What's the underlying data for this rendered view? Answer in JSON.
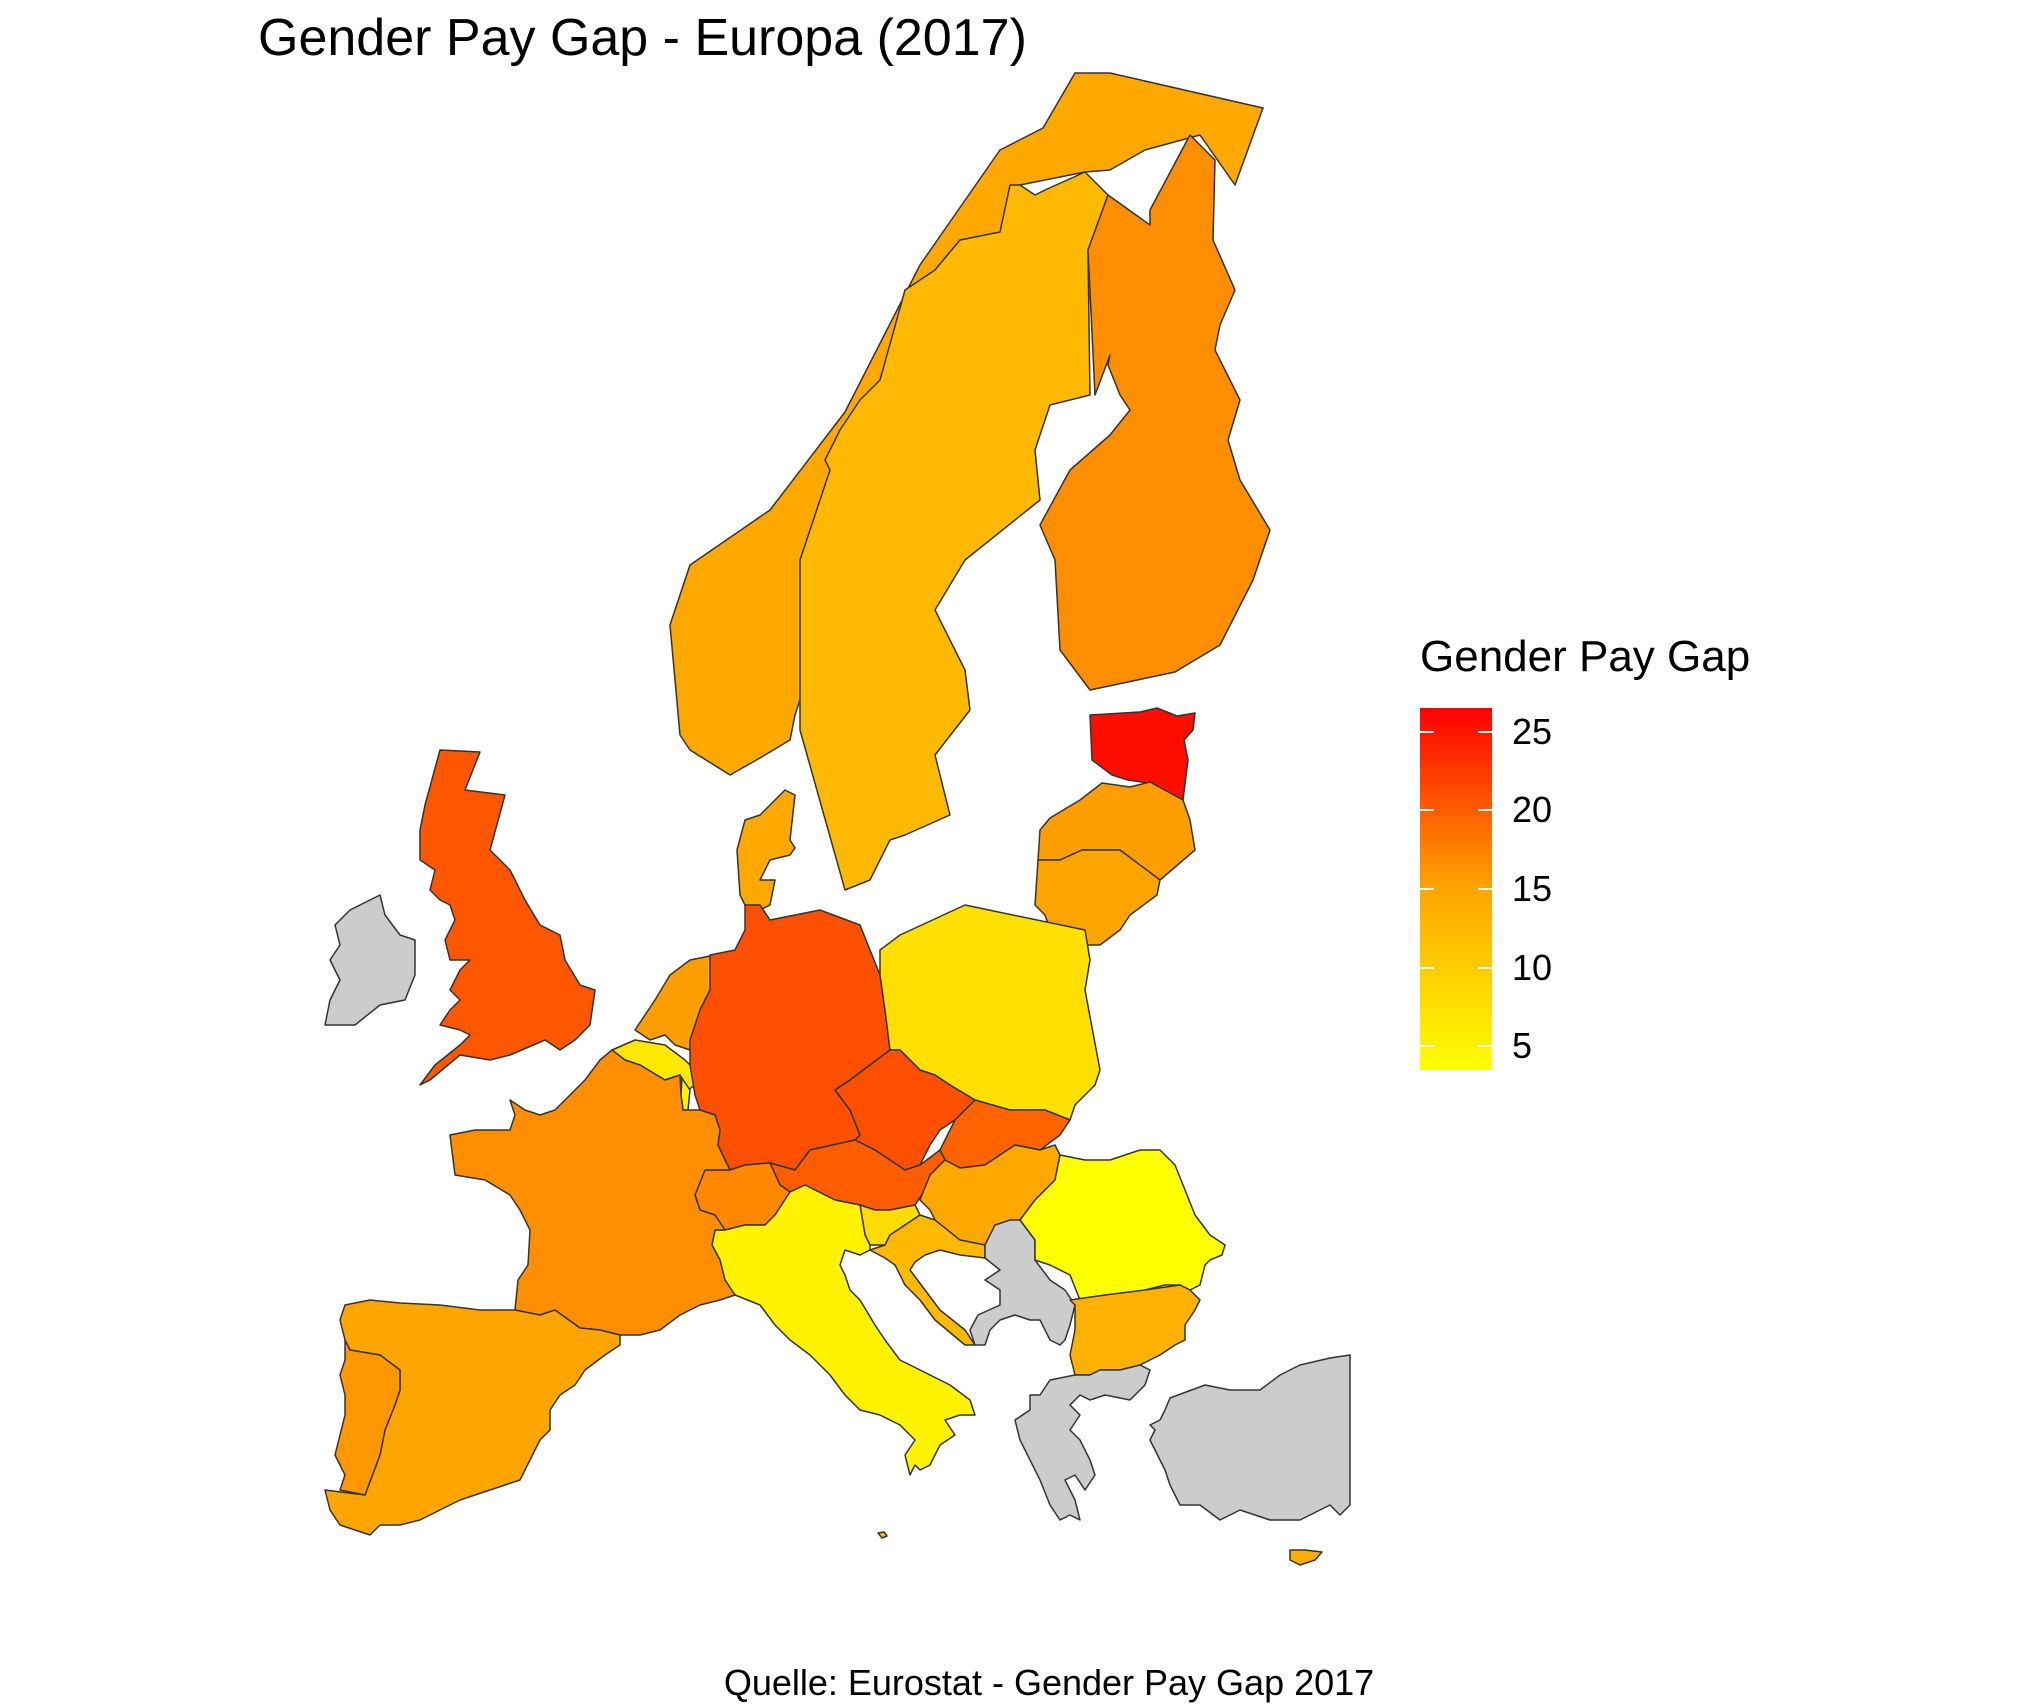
{
  "title": "Gender Pay Gap - Europa (2017)",
  "caption": "Quelle: Eurostat - Gender Pay Gap 2017",
  "legend": {
    "title": "Gender Pay Gap",
    "min": 3.5,
    "max": 26.5,
    "ticks": [
      {
        "value": 25,
        "label": "25"
      },
      {
        "value": 20,
        "label": "20"
      },
      {
        "value": 15,
        "label": "15"
      },
      {
        "value": 10,
        "label": "10"
      },
      {
        "value": 5,
        "label": "5"
      }
    ],
    "scale_colors": [
      "#ffff00",
      "#ffa500",
      "#ff0000"
    ]
  },
  "no_data_color": "#cccccc",
  "countries": [
    {
      "id": "norway",
      "value": 14.5
    },
    {
      "id": "sweden",
      "value": 12.5
    },
    {
      "id": "finland",
      "value": 16.5
    },
    {
      "id": "estonia",
      "value": 25.5
    },
    {
      "id": "latvia",
      "value": 15.5
    },
    {
      "id": "lithuania",
      "value": 15.0
    },
    {
      "id": "denmark",
      "value": 14.5
    },
    {
      "id": "united-kingdom",
      "value": 20.5
    },
    {
      "id": "ireland",
      "value": null
    },
    {
      "id": "netherlands",
      "value": 15.5
    },
    {
      "id": "belgium",
      "value": 6.5
    },
    {
      "id": "luxembourg",
      "value": 5.0
    },
    {
      "id": "germany",
      "value": 21.0
    },
    {
      "id": "poland",
      "value": 7.5
    },
    {
      "id": "czechia",
      "value": 21.0
    },
    {
      "id": "slovakia",
      "value": 19.5
    },
    {
      "id": "austria",
      "value": 20.0
    },
    {
      "id": "switzerland",
      "value": 17.0
    },
    {
      "id": "hungary",
      "value": 14.5
    },
    {
      "id": "slovenia",
      "value": 8.0
    },
    {
      "id": "croatia",
      "value": 12.5
    },
    {
      "id": "romania",
      "value": 3.5
    },
    {
      "id": "bulgaria",
      "value": 13.5
    },
    {
      "id": "france",
      "value": 16.5
    },
    {
      "id": "spain",
      "value": 15.0
    },
    {
      "id": "portugal",
      "value": 16.0
    },
    {
      "id": "italy",
      "value": 5.0
    },
    {
      "id": "bosnia-serbia",
      "value": null
    },
    {
      "id": "greece",
      "value": null
    },
    {
      "id": "turkey",
      "value": null
    },
    {
      "id": "cyprus",
      "value": 14.0
    },
    {
      "id": "malta",
      "value": 11.0
    }
  ]
}
